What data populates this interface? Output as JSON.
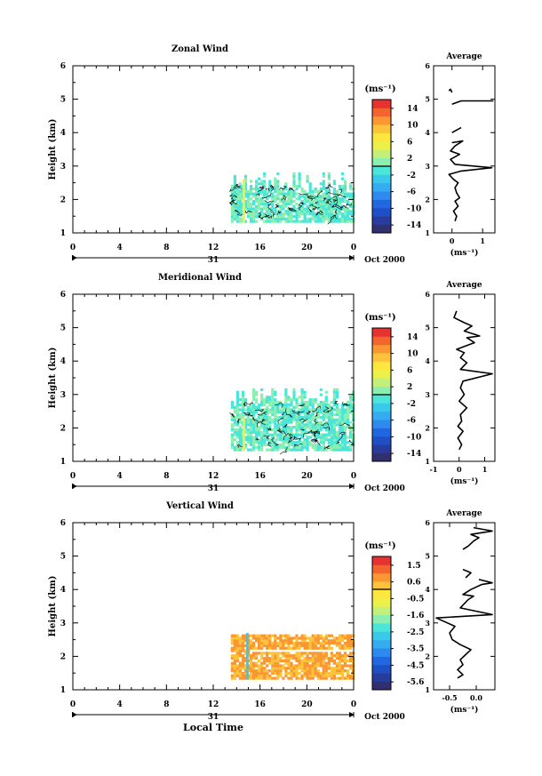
{
  "figure": {
    "date_label": "Oct 2000",
    "day_label": "31",
    "xlabel_bottom": "Local Time"
  },
  "chart_data": [
    {
      "type": "heatmap",
      "id": "zonal",
      "title": "Zonal Wind",
      "ylabel": "Height (km)",
      "xlim": [
        0,
        24
      ],
      "ylim": [
        1,
        6
      ],
      "xticks": [
        "0",
        "4",
        "8",
        "12",
        "16",
        "20",
        "0"
      ],
      "yticks": [
        "1",
        "2",
        "3",
        "4",
        "5",
        "6"
      ],
      "colorbar_unit": "(ms⁻¹)",
      "colorbar_ticks": [
        "14",
        "10",
        "6",
        "2",
        "-2",
        "-6",
        "-10",
        "-14"
      ],
      "colorbar_range": [
        -16,
        16
      ],
      "data_region": {
        "x": [
          13.5,
          24
        ],
        "y": [
          1.3,
          2.8
        ],
        "typical_value": "-1 to 1 ms⁻¹",
        "band": {
          "x": 14.5,
          "y": [
            1.3,
            2.6
          ],
          "value": 4
        }
      },
      "profile": {
        "title": "Average",
        "xlabel": "(ms⁻¹)",
        "xlim": [
          -0.6,
          1.4
        ],
        "ylim": [
          1,
          6
        ],
        "xticks": [
          "0",
          "1"
        ],
        "yticks": [
          "1",
          "2",
          "3",
          "4",
          "5",
          "6"
        ],
        "segments": [
          [
            [
              0.1,
              1.35
            ],
            [
              0.15,
              1.5
            ],
            [
              0.05,
              1.65
            ],
            [
              0.2,
              1.8
            ],
            [
              0.1,
              1.95
            ],
            [
              0.25,
              2.05
            ],
            [
              0.15,
              2.2
            ],
            [
              0.1,
              2.35
            ],
            [
              0.2,
              2.5
            ],
            [
              0.05,
              2.6
            ],
            [
              -0.1,
              2.75
            ],
            [
              0.3,
              2.85
            ],
            [
              1.3,
              2.95
            ],
            [
              0.1,
              3.05
            ],
            [
              -0.05,
              3.2
            ],
            [
              0.25,
              3.35
            ],
            [
              -0.05,
              3.45
            ],
            [
              0.1,
              3.6
            ],
            [
              0.35,
              3.75
            ],
            [
              0.0,
              3.7
            ]
          ],
          [
            [
              0.0,
              4.0
            ],
            [
              0.3,
              4.15
            ]
          ],
          [
            [
              0.0,
              4.85
            ],
            [
              0.3,
              4.95
            ],
            [
              1.35,
              4.95
            ]
          ],
          [
            [
              0.0,
              5.2
            ],
            [
              -0.05,
              5.3
            ],
            [
              -0.1,
              5.25
            ]
          ]
        ]
      }
    },
    {
      "type": "heatmap",
      "id": "meridional",
      "title": "Meridional Wind",
      "ylabel": "Height (km)",
      "xlim": [
        0,
        24
      ],
      "ylim": [
        1,
        6
      ],
      "xticks": [
        "0",
        "4",
        "8",
        "12",
        "16",
        "20",
        "0"
      ],
      "yticks": [
        "1",
        "2",
        "3",
        "4",
        "5",
        "6"
      ],
      "colorbar_unit": "(ms⁻¹)",
      "colorbar_ticks": [
        "14",
        "10",
        "6",
        "2",
        "-2",
        "-6",
        "-10",
        "-14"
      ],
      "colorbar_range": [
        -16,
        16
      ],
      "data_region": {
        "x": [
          13.5,
          24
        ],
        "y": [
          1.3,
          3.2
        ],
        "typical_value": "-1 to 1 ms⁻¹",
        "band": {
          "x": 14.5,
          "y": [
            1.3,
            2.3
          ],
          "value": 4
        }
      },
      "profile": {
        "title": "Average",
        "xlabel": "(ms⁻¹)",
        "xlim": [
          -1,
          1.4
        ],
        "ylim": [
          1,
          6
        ],
        "xticks": [
          "-1",
          "0",
          "1"
        ],
        "yticks": [
          "1",
          "2",
          "3",
          "4",
          "5",
          "6"
        ],
        "segments": [
          [
            [
              0.0,
              1.35
            ],
            [
              0.1,
              1.5
            ],
            [
              -0.05,
              1.7
            ],
            [
              0.15,
              1.9
            ],
            [
              -0.05,
              2.05
            ],
            [
              0.1,
              2.2
            ],
            [
              0.05,
              2.4
            ],
            [
              0.3,
              2.6
            ],
            [
              0.0,
              2.8
            ],
            [
              0.2,
              3.0
            ],
            [
              0.05,
              3.2
            ],
            [
              0.15,
              3.4
            ],
            [
              1.3,
              3.62
            ],
            [
              0.05,
              3.75
            ],
            [
              0.3,
              3.95
            ],
            [
              0.05,
              4.1
            ],
            [
              0.2,
              4.25
            ],
            [
              -0.1,
              4.35
            ],
            [
              0.6,
              4.55
            ],
            [
              0.3,
              4.7
            ],
            [
              0.8,
              4.75
            ],
            [
              0.2,
              4.9
            ],
            [
              0.5,
              5.05
            ],
            [
              0.2,
              5.15
            ],
            [
              -0.2,
              5.3
            ],
            [
              -0.1,
              5.5
            ]
          ]
        ]
      }
    },
    {
      "type": "heatmap",
      "id": "vertical",
      "title": "Vertical Wind",
      "ylabel": "Height (km)",
      "xlim": [
        0,
        24
      ],
      "ylim": [
        1,
        6
      ],
      "xticks": [
        "0",
        "4",
        "8",
        "12",
        "16",
        "20",
        "0"
      ],
      "yticks": [
        "1",
        "2",
        "3",
        "4",
        "5",
        "6"
      ],
      "colorbar_unit": "(ms⁻¹)",
      "colorbar_ticks": [
        "1.5",
        "0.6",
        "-0.5",
        "-1.6",
        "-2.5",
        "-3.5",
        "-4.5",
        "-5.6"
      ],
      "colorbar_range": [
        -6.1,
        2.0
      ],
      "data_region": {
        "x": [
          13.5,
          24
        ],
        "y": [
          1.3,
          2.6
        ],
        "typical_value": "0 to 1 ms⁻¹",
        "band": {
          "x": 14.8,
          "y": [
            1.3,
            2.7
          ],
          "value": -2.8
        }
      },
      "profile": {
        "title": "Average",
        "xlabel": "(ms⁻¹)",
        "xlim": [
          -0.8,
          0.35
        ],
        "ylim": [
          1,
          6
        ],
        "xticks": [
          "-0.5",
          "0.0"
        ],
        "yticks": [
          "1",
          "2",
          "3",
          "4",
          "5",
          "6"
        ],
        "segments": [
          [
            [
              -0.35,
              1.35
            ],
            [
              -0.25,
              1.45
            ],
            [
              -0.35,
              1.6
            ],
            [
              -0.25,
              1.75
            ],
            [
              -0.3,
              1.9
            ],
            [
              -0.2,
              2.05
            ],
            [
              -0.1,
              2.2
            ],
            [
              -0.3,
              2.35
            ],
            [
              -0.45,
              2.5
            ],
            [
              -0.5,
              2.7
            ],
            [
              -0.4,
              2.9
            ],
            [
              -0.75,
              3.15
            ],
            [
              0.3,
              3.25
            ],
            [
              -0.3,
              3.45
            ],
            [
              -0.15,
              3.7
            ],
            [
              -0.05,
              3.8
            ],
            [
              -0.25,
              3.85
            ],
            [
              -0.1,
              4.0
            ],
            [
              0.1,
              4.15
            ],
            [
              0.3,
              4.2
            ],
            [
              0.05,
              4.3
            ]
          ],
          [
            [
              -0.2,
              4.35
            ],
            [
              -0.1,
              4.5
            ],
            [
              -0.25,
              4.6
            ]
          ],
          [
            [
              -0.25,
              5.2
            ],
            [
              -0.15,
              5.3
            ],
            [
              -0.05,
              5.45
            ],
            [
              0.05,
              5.55
            ],
            [
              -0.1,
              5.65
            ],
            [
              0.3,
              5.75
            ],
            [
              -0.05,
              5.85
            ]
          ]
        ]
      }
    }
  ]
}
